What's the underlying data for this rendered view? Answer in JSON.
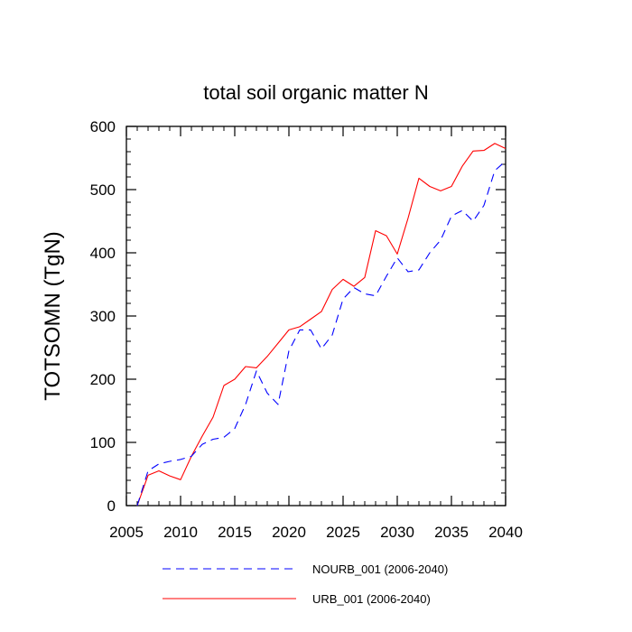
{
  "chart_data": {
    "type": "line",
    "title": "total soil organic matter N",
    "xlabel": "",
    "ylabel": "TOTSOMN  (TgN)",
    "xlim": [
      2005,
      2040
    ],
    "ylim": [
      0,
      600
    ],
    "x_ticks": [
      2005,
      2010,
      2015,
      2020,
      2025,
      2030,
      2035,
      2040
    ],
    "y_ticks": [
      0,
      100,
      200,
      300,
      400,
      500,
      600
    ],
    "x_tick_labels": [
      "2005",
      "2010",
      "2015",
      "2020",
      "2025",
      "2030",
      "2035",
      "2040"
    ],
    "y_tick_labels": [
      "0",
      "100",
      "200",
      "300",
      "400",
      "500",
      "600"
    ],
    "x": [
      2006,
      2007,
      2008,
      2009,
      2010,
      2011,
      2012,
      2013,
      2014,
      2015,
      2016,
      2017,
      2018,
      2019,
      2020,
      2021,
      2022,
      2023,
      2024,
      2025,
      2026,
      2027,
      2028,
      2029,
      2030,
      2031,
      2032,
      2033,
      2034,
      2035,
      2036,
      2037,
      2038,
      2039,
      2040
    ],
    "series": [
      {
        "name": "NOURB_001 (2006-2040)",
        "legend_label": "NOURB_001 (2006-2040)",
        "color": "#0000ff",
        "style": "dashed",
        "values": [
          0,
          55,
          66,
          70,
          73,
          78,
          97,
          105,
          108,
          122,
          160,
          213,
          178,
          160,
          245,
          278,
          278,
          248,
          270,
          327,
          345,
          335,
          332,
          363,
          392,
          370,
          373,
          400,
          420,
          458,
          467,
          450,
          475,
          530,
          545
        ]
      },
      {
        "name": "URB_001 (2006-2040)",
        "legend_label": "URB_001 (2006-2040)",
        "color": "#ff0000",
        "style": "solid",
        "values": [
          0,
          48,
          55,
          47,
          41,
          78,
          110,
          140,
          190,
          200,
          220,
          218,
          236,
          257,
          278,
          283,
          295,
          307,
          342,
          358,
          347,
          361,
          435,
          427,
          398,
          455,
          518,
          505,
          498,
          505,
          537,
          561,
          562,
          573,
          565
        ]
      }
    ],
    "legend_position": "bottom"
  }
}
